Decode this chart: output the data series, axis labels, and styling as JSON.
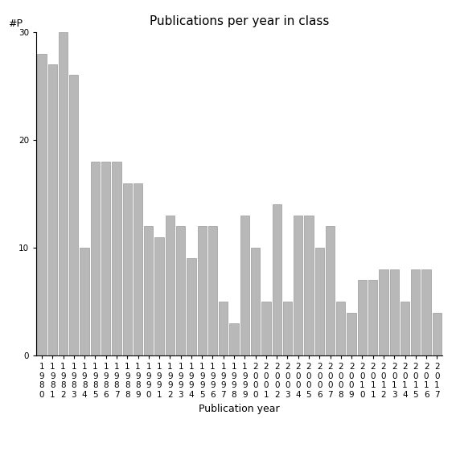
{
  "title": "Publications per year in class",
  "xlabel": "Publication year",
  "ylabel": "#P",
  "categories": [
    "1980",
    "1981",
    "1982",
    "1983",
    "1984",
    "1985",
    "1986",
    "1987",
    "1988",
    "1989",
    "1990",
    "1991",
    "1992",
    "1993",
    "1994",
    "1995",
    "1996",
    "1997",
    "1998",
    "1999",
    "2000",
    "2001",
    "2002",
    "2003",
    "2004",
    "2005",
    "2006",
    "2007",
    "2008",
    "2009",
    "2010",
    "2011",
    "2012",
    "2013",
    "2014",
    "2015",
    "2016",
    "2017"
  ],
  "values": [
    28,
    27,
    30,
    26,
    10,
    18,
    18,
    18,
    16,
    16,
    12,
    11,
    13,
    12,
    9,
    12,
    12,
    5,
    3,
    13,
    10,
    5,
    14,
    5,
    13,
    13,
    10,
    12,
    5,
    4,
    7,
    7,
    8,
    8,
    5,
    8,
    8,
    4
  ],
  "bar_color": "#b8b8b8",
  "bar_edgecolor": "#999999",
  "ylim": [
    0,
    30
  ],
  "yticks": [
    0,
    10,
    20,
    30
  ],
  "background_color": "#ffffff",
  "title_fontsize": 11,
  "label_fontsize": 9,
  "tick_fontsize": 7.5
}
